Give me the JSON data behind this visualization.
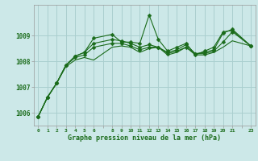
{
  "title": "Graphe pression niveau de la mer (hPa)",
  "background_color": "#cce8e8",
  "grid_color": "#aacfcf",
  "line_color": "#1a6b1a",
  "xlim": [
    -0.5,
    23.5
  ],
  "ylim": [
    1005.5,
    1010.2
  ],
  "yticks": [
    1006,
    1007,
    1008,
    1009
  ],
  "xtick_positions": [
    0,
    1,
    2,
    3,
    4,
    5,
    6,
    7,
    8,
    9,
    10,
    11,
    12,
    13,
    14,
    15,
    16,
    17,
    18,
    19,
    20,
    21,
    22,
    23
  ],
  "xtick_labels": [
    "0",
    "1",
    "2",
    "3",
    "4",
    "5",
    "6",
    "",
    "8",
    "9",
    "10",
    "11",
    "12",
    "13",
    "14",
    "15",
    "16",
    "17",
    "18",
    "19",
    "20",
    "21",
    "",
    "23"
  ],
  "series1_x": [
    0,
    1,
    2,
    3,
    4,
    5,
    6,
    8,
    9,
    10,
    11,
    12,
    13,
    14,
    15,
    16,
    17,
    18,
    19,
    20,
    21,
    23
  ],
  "series1_y": [
    1005.85,
    1006.6,
    1007.15,
    1007.85,
    1008.2,
    1008.35,
    1008.9,
    1009.05,
    1008.75,
    1008.75,
    1008.7,
    1009.8,
    1008.85,
    1008.4,
    1008.55,
    1008.7,
    1008.25,
    1008.4,
    1008.55,
    1009.15,
    1009.2,
    1008.6
  ],
  "series2_x": [
    0,
    1,
    2,
    3,
    4,
    5,
    6,
    8,
    9,
    10,
    11,
    12,
    13,
    14,
    15,
    16,
    17,
    18,
    19,
    20,
    21,
    23
  ],
  "series2_y": [
    1005.85,
    1006.6,
    1007.15,
    1007.85,
    1008.2,
    1008.35,
    1008.7,
    1008.85,
    1008.8,
    1008.7,
    1008.55,
    1008.65,
    1008.55,
    1008.35,
    1008.45,
    1008.65,
    1008.3,
    1008.35,
    1008.45,
    1009.1,
    1009.25,
    1008.6
  ],
  "series3_x": [
    0,
    1,
    2,
    3,
    4,
    5,
    6,
    8,
    9,
    10,
    11,
    12,
    13,
    14,
    15,
    16,
    17,
    18,
    19,
    20,
    21,
    23
  ],
  "series3_y": [
    1005.85,
    1006.6,
    1007.15,
    1007.85,
    1008.15,
    1008.25,
    1008.55,
    1008.7,
    1008.7,
    1008.6,
    1008.45,
    1008.55,
    1008.55,
    1008.3,
    1008.4,
    1008.55,
    1008.3,
    1008.3,
    1008.4,
    1008.75,
    1009.15,
    1008.6
  ],
  "series4_x": [
    0,
    1,
    2,
    3,
    4,
    5,
    6,
    8,
    9,
    10,
    11,
    12,
    13,
    14,
    15,
    16,
    17,
    18,
    19,
    20,
    21,
    23
  ],
  "series4_y": [
    1005.85,
    1006.6,
    1007.15,
    1007.8,
    1008.05,
    1008.15,
    1008.05,
    1008.55,
    1008.6,
    1008.55,
    1008.35,
    1008.5,
    1008.55,
    1008.25,
    1008.35,
    1008.55,
    1008.25,
    1008.25,
    1008.35,
    1008.55,
    1008.8,
    1008.6
  ]
}
